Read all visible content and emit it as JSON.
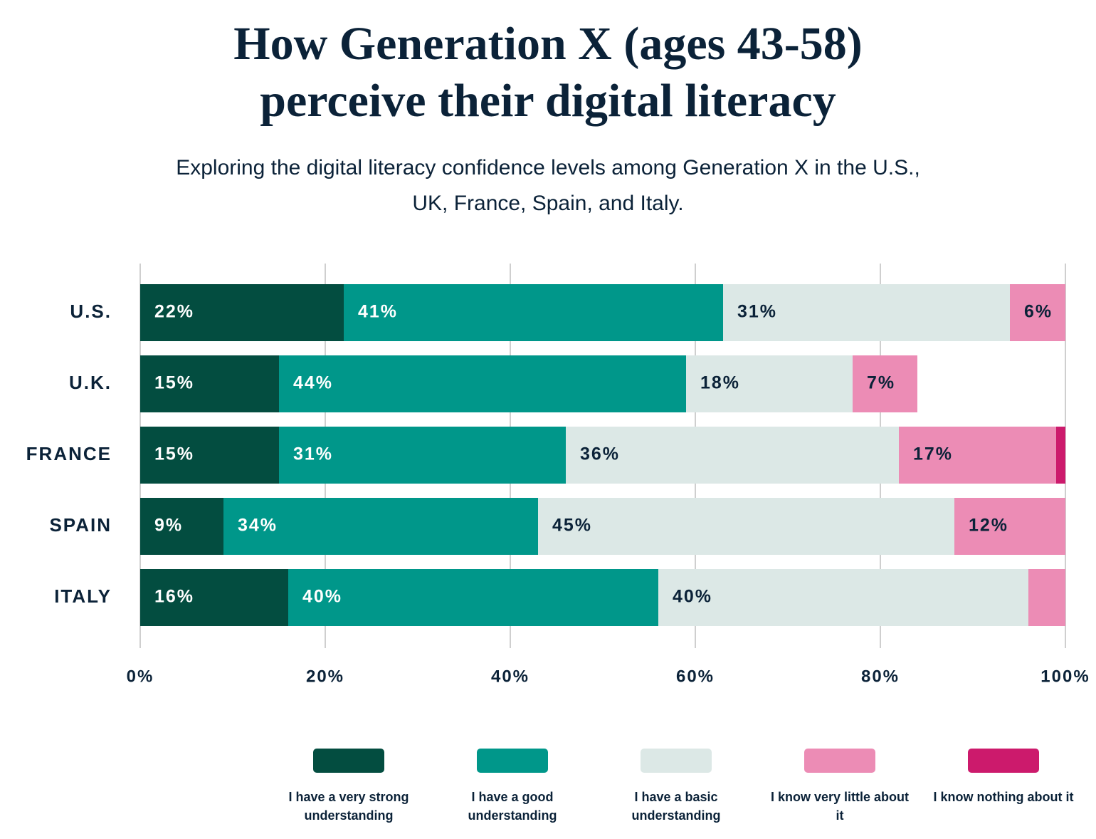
{
  "chart_data": {
    "type": "stacked-barh",
    "title": "How Generation X (ages 43-58) perceive their digital literacy",
    "subtitle": "Exploring the digital literacy confidence levels among Generation X in the U.S., UK, France, Spain, and Italy.",
    "categories": [
      "U.S.",
      "U.K.",
      "FRANCE",
      "SPAIN",
      "ITALY"
    ],
    "series": [
      {
        "name": "I have a very strong understanding",
        "color": "#034d40",
        "values": [
          22,
          15,
          15,
          9,
          16
        ],
        "value_labels": [
          "22%",
          "15%",
          "15%",
          "9%",
          "16%"
        ]
      },
      {
        "name": "I have a good understanding",
        "color": "#00978a",
        "values": [
          41,
          44,
          31,
          34,
          40
        ],
        "value_labels": [
          "41%",
          "44%",
          "31%",
          "34%",
          "40%"
        ]
      },
      {
        "name": "I have a basic understanding",
        "color": "#dce8e6",
        "values": [
          31,
          18,
          36,
          45,
          40
        ],
        "value_labels": [
          "31%",
          "18%",
          "36%",
          "45%",
          "40%"
        ]
      },
      {
        "name": "I know very little about it",
        "color": "#ec8cb5",
        "values": [
          6,
          7,
          17,
          12,
          4
        ],
        "value_labels": [
          "6%",
          "7%",
          "17%",
          "12%",
          null
        ]
      },
      {
        "name": "I know nothing about it",
        "color": "#cc1a6c",
        "values": [
          0,
          0,
          1,
          0,
          0
        ],
        "value_labels": [
          null,
          null,
          null,
          null,
          null
        ]
      }
    ],
    "xlim": [
      0,
      100
    ],
    "xticks": [
      {
        "value": 0,
        "label": "0%"
      },
      {
        "value": 20,
        "label": "20%"
      },
      {
        "value": 40,
        "label": "40%"
      },
      {
        "value": 60,
        "label": "60%"
      },
      {
        "value": 80,
        "label": "80%"
      },
      {
        "value": 100,
        "label": "100%"
      }
    ],
    "grid": true,
    "legend": "bottom"
  }
}
